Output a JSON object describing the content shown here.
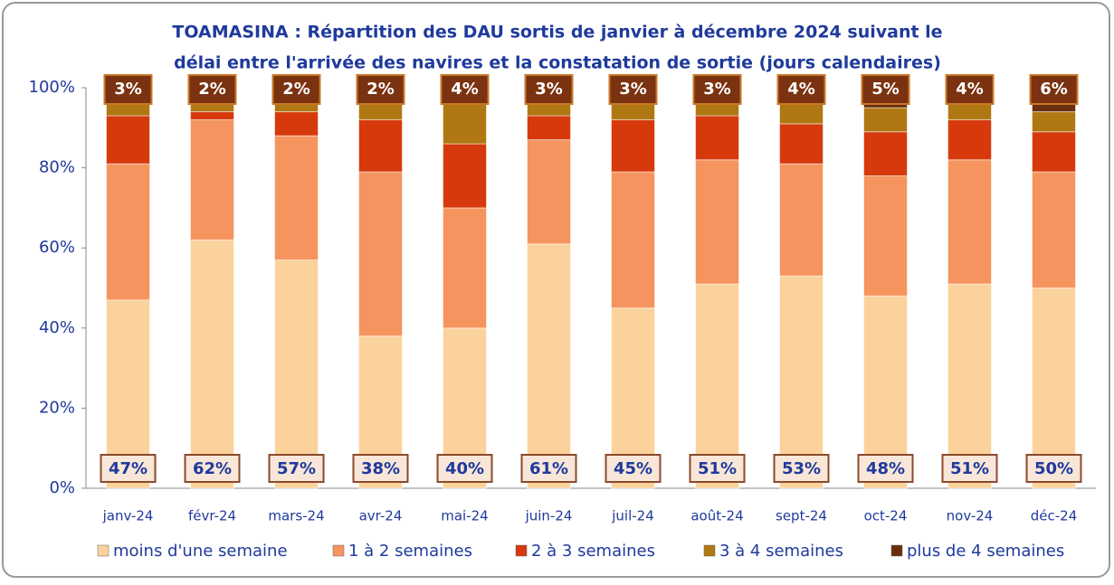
{
  "chart_data": {
    "type": "stacked_bar",
    "title": "TOAMASINA : Répartition des DAU sortis de janvier à décembre 2024 suivant le",
    "subtitle": "délai entre l'arrivée des navires et la constatation de sortie (jours calendaires)",
    "categories": [
      "janv-24",
      "févr-24",
      "mars-24",
      "avr-24",
      "mai-24",
      "juin-24",
      "juil-24",
      "août-24",
      "sept-24",
      "oct-24",
      "nov-24",
      "déc-24"
    ],
    "series": [
      {
        "name": "moins d'une semaine",
        "color": "#fcd29c",
        "values": [
          47,
          62,
          57,
          38,
          40,
          61,
          45,
          51,
          53,
          48,
          51,
          50
        ],
        "value_labels": [
          "47%",
          "62%",
          "57%",
          "38%",
          "40%",
          "61%",
          "45%",
          "51%",
          "53%",
          "48%",
          "51%",
          "50%"
        ]
      },
      {
        "name": "1 à 2 semaines",
        "color": "#f5945e",
        "values": [
          34,
          30,
          31,
          41,
          30,
          26,
          34,
          31,
          28,
          30,
          31,
          29
        ]
      },
      {
        "name": "2 à 3 semaines",
        "color": "#d63a0c",
        "values": [
          12,
          2,
          6,
          13,
          16,
          6,
          13,
          11,
          10,
          11,
          10,
          10
        ]
      },
      {
        "name": "3 à 4 semaines",
        "color": "#b07812",
        "values": [
          4,
          4,
          4,
          6,
          10,
          4,
          5,
          4,
          5,
          6,
          4,
          5
        ]
      },
      {
        "name": "plus de 4 semaines",
        "color": "#6a2e0c",
        "values": [
          3,
          2,
          2,
          2,
          4,
          3,
          3,
          3,
          4,
          5,
          4,
          6
        ],
        "value_labels": [
          "3%",
          "2%",
          "2%",
          "2%",
          "4%",
          "3%",
          "3%",
          "3%",
          "4%",
          "5%",
          "4%",
          "6%"
        ]
      }
    ],
    "ylim": [
      0,
      100
    ],
    "yticks": [
      {
        "value": 0,
        "label": "0%"
      },
      {
        "value": 20,
        "label": "20%"
      },
      {
        "value": 40,
        "label": "40%"
      },
      {
        "value": 60,
        "label": "60%"
      },
      {
        "value": 80,
        "label": "80%"
      },
      {
        "value": 100,
        "label": "100%"
      }
    ],
    "legend": "bottom"
  }
}
